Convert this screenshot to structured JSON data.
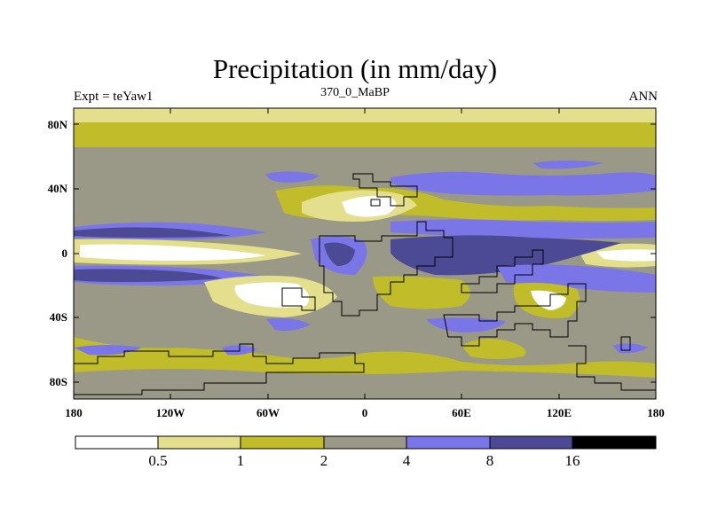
{
  "title": "Precipitation (in mm/day)",
  "left_label": "Expt = teYaw1",
  "center_label": "370_0_MaBP",
  "right_label": "ANN",
  "y_ticks": [
    "80N",
    "40N",
    "0",
    "40S",
    "80S"
  ],
  "x_ticks": [
    "180",
    "120W",
    "60W",
    "0",
    "60E",
    "120E",
    "180"
  ],
  "colorbar": {
    "colors": [
      "#ffffff",
      "#e3df8c",
      "#c0bc2a",
      "#9a9886",
      "#7b76e8",
      "#4c4a94",
      "#000000"
    ],
    "labels": [
      "0.5",
      "1",
      "2",
      "4",
      "8",
      "16"
    ]
  }
}
